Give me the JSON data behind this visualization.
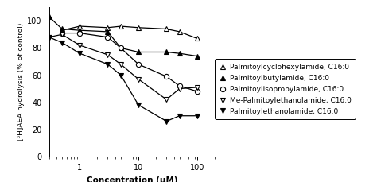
{
  "xlabel": "Concentration (μM)",
  "ylabel": "[³H]AEA hydrolysis (% of control)",
  "ylim": [
    0,
    110
  ],
  "xlim": [
    0.3,
    200
  ],
  "series": [
    {
      "key": "palmitoylcyclohexylamide",
      "x": [
        0.5,
        1.0,
        3.0,
        5.0,
        10.0,
        30.0,
        50.0,
        100.0
      ],
      "y": [
        93,
        96,
        95,
        96,
        95,
        94,
        92,
        87
      ],
      "marker": "^",
      "filled": false,
      "label": "Palmitoylcyclohexylamide, C16:0"
    },
    {
      "key": "palmitoylbutylamide",
      "x": [
        0.3,
        0.5,
        1.0,
        3.0,
        5.0,
        10.0,
        30.0,
        50.0,
        100.0
      ],
      "y": [
        103,
        94,
        93,
        92,
        80,
        77,
        77,
        76,
        74
      ],
      "marker": "^",
      "filled": true,
      "label": "Palmitoylbutylamide, C16:0"
    },
    {
      "key": "palmitoylisopropylamide",
      "x": [
        0.5,
        1.0,
        3.0,
        5.0,
        10.0,
        30.0,
        50.0,
        100.0
      ],
      "y": [
        91,
        91,
        88,
        80,
        68,
        59,
        52,
        48
      ],
      "marker": "o",
      "filled": false,
      "label": "Palmitoylisopropylamide, C16:0"
    },
    {
      "key": "me_palmitoylethanolamide",
      "x": [
        0.3,
        0.5,
        1.0,
        3.0,
        5.0,
        10.0,
        30.0,
        50.0,
        100.0
      ],
      "y": [
        88,
        90,
        82,
        75,
        68,
        57,
        42,
        50,
        51
      ],
      "marker": "v",
      "filled": false,
      "label": "Me-Palmitoylethanolamide, C16:0"
    },
    {
      "key": "palmitoylethanolamide",
      "x": [
        0.3,
        0.5,
        1.0,
        3.0,
        5.0,
        10.0,
        30.0,
        50.0,
        100.0
      ],
      "y": [
        88,
        84,
        76,
        68,
        60,
        38,
        26,
        30,
        30
      ],
      "marker": "v",
      "filled": true,
      "label": "Palmitoylethanolamide, C16:0"
    }
  ],
  "yticks": [
    0,
    20,
    40,
    60,
    80,
    100
  ],
  "xticks": [
    1,
    10,
    100
  ],
  "background_color": "#ffffff",
  "font_size": 7,
  "markersize": 4.5,
  "linewidth": 0.9
}
